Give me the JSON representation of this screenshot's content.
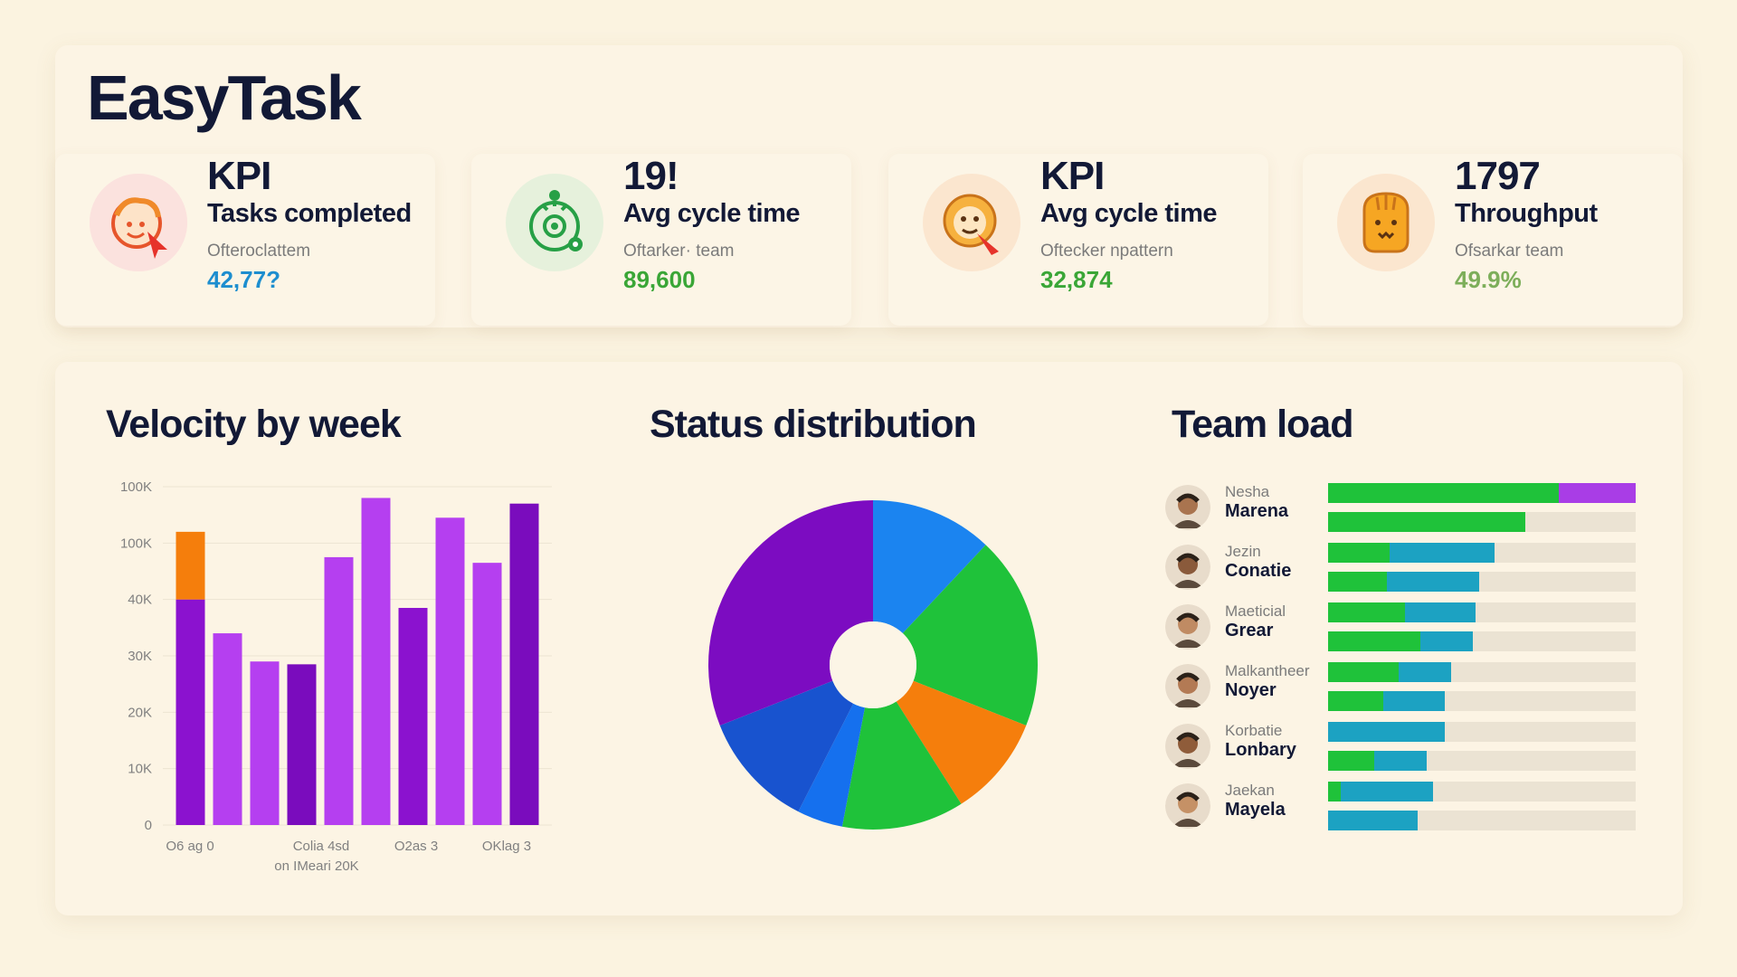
{
  "app": {
    "title": "EasyTask"
  },
  "colors": {
    "blue_value": "#1d8ecf",
    "green_value": "#3aa637",
    "light_green_value": "#7dae5a",
    "green": "#1fc23a",
    "teal": "#1ca2c2",
    "purple": "#a93de6",
    "dark_purple": "#7a0cbd",
    "orange": "#f57e0c"
  },
  "kpis": [
    {
      "head": "KPI",
      "label": "Tasks completed",
      "sub": "Ofteroclattem",
      "value": "42,77?",
      "value_color": "#1d8ecf",
      "icon": "face-cursor-icon"
    },
    {
      "head": "19!",
      "label": "Avg cycle time",
      "sub": "Oftarker· team",
      "value": "89,600",
      "value_color": "#3aa637",
      "icon": "cycle-target-icon"
    },
    {
      "head": "KPI",
      "label": "Avg cycle time",
      "sub": "Oftecker npattern",
      "value": "32,874",
      "value_color": "#3aa637",
      "icon": "face-pencil-icon"
    },
    {
      "head": "1797",
      "label": "Throughput",
      "sub": "Ofsarkar team",
      "value": "49.9%",
      "value_color": "#7dae5a",
      "icon": "mask-face-icon"
    }
  ],
  "sections": {
    "velocity": "Velocity by week",
    "status": "Status distribution",
    "team": "Team load"
  },
  "chart_data": [
    {
      "type": "bar",
      "title": "Velocity by week",
      "y_tick_labels": [
        "0",
        "10K",
        "20K",
        "30K",
        "40K",
        "100K",
        "100K"
      ],
      "x_tick_labels": [
        "O6 ag 0",
        "Colia 4sd",
        "O2as 3",
        "OKlag 3"
      ],
      "x_sublabel": "on IMeari 20K",
      "bars": [
        {
          "value": 40,
          "color": "#8b12cf"
        },
        {
          "value": 34,
          "color": "#b53ff0"
        },
        {
          "value": 29,
          "color": "#b53ff0"
        },
        {
          "value": 28.5,
          "color": "#7a0cbd"
        },
        {
          "value": 47.5,
          "color": "#b53ff0"
        },
        {
          "value": 58,
          "color": "#b53ff0"
        },
        {
          "value": 38.5,
          "color": "#8b12cf"
        },
        {
          "value": 54.5,
          "color": "#b53ff0"
        },
        {
          "value": 46.5,
          "color": "#b53ff0"
        },
        {
          "value": 57,
          "color": "#7a0cbd"
        }
      ],
      "stack_overlay": {
        "bar_index": 0,
        "from": 40,
        "to": 52,
        "color": "#f57e0c"
      }
    },
    {
      "type": "pie",
      "title": "Status distribution",
      "slices": [
        {
          "value": 12,
          "color": "#1b84f0"
        },
        {
          "value": 19,
          "color": "#1fc23a"
        },
        {
          "value": 10,
          "color": "#f57e0c"
        },
        {
          "value": 12,
          "color": "#1fc23a"
        },
        {
          "value": 4.5,
          "color": "#1570ee"
        },
        {
          "value": 11.5,
          "color": "#1853cf"
        },
        {
          "value": 31,
          "color": "#7c0cc1"
        }
      ]
    },
    {
      "type": "bar",
      "title": "Team load",
      "orientation": "horizontal",
      "max": 100,
      "rows": [
        {
          "green": 75,
          "teal": 0,
          "purple": 25
        },
        {
          "green": 64,
          "teal": 0,
          "purple": 0
        },
        {
          "green": 20,
          "teal": 34,
          "purple": 0
        },
        {
          "green": 19,
          "teal": 30,
          "purple": 0
        },
        {
          "green": 25,
          "teal": 23,
          "purple": 0
        },
        {
          "green": 30,
          "teal": 17,
          "purple": 0
        },
        {
          "green": 23,
          "teal": 17,
          "purple": 0
        },
        {
          "green": 18,
          "teal": 20,
          "purple": 0
        },
        {
          "green": 0,
          "teal": 38,
          "purple": 0
        },
        {
          "green": 15,
          "teal": 17,
          "purple": 0
        },
        {
          "green": 4,
          "teal": 30,
          "purple": 0
        },
        {
          "green": 0,
          "teal": 29,
          "purple": 0
        }
      ]
    }
  ],
  "team": [
    {
      "first": "Nesha",
      "last": "Marena",
      "avatar": "avatar-icon"
    },
    {
      "first": "Jezin",
      "last": "Conatie",
      "avatar": "avatar-icon"
    },
    {
      "first": "Maeticial",
      "last": "Grear",
      "avatar": "avatar-icon"
    },
    {
      "first": "Malkantheer",
      "last": "Noyer",
      "avatar": "avatar-icon"
    },
    {
      "first": "Korbatie",
      "last": "Lonbary",
      "avatar": "avatar-icon"
    },
    {
      "first": "Jaekan",
      "last": "Mayela",
      "avatar": "avatar-icon"
    }
  ]
}
